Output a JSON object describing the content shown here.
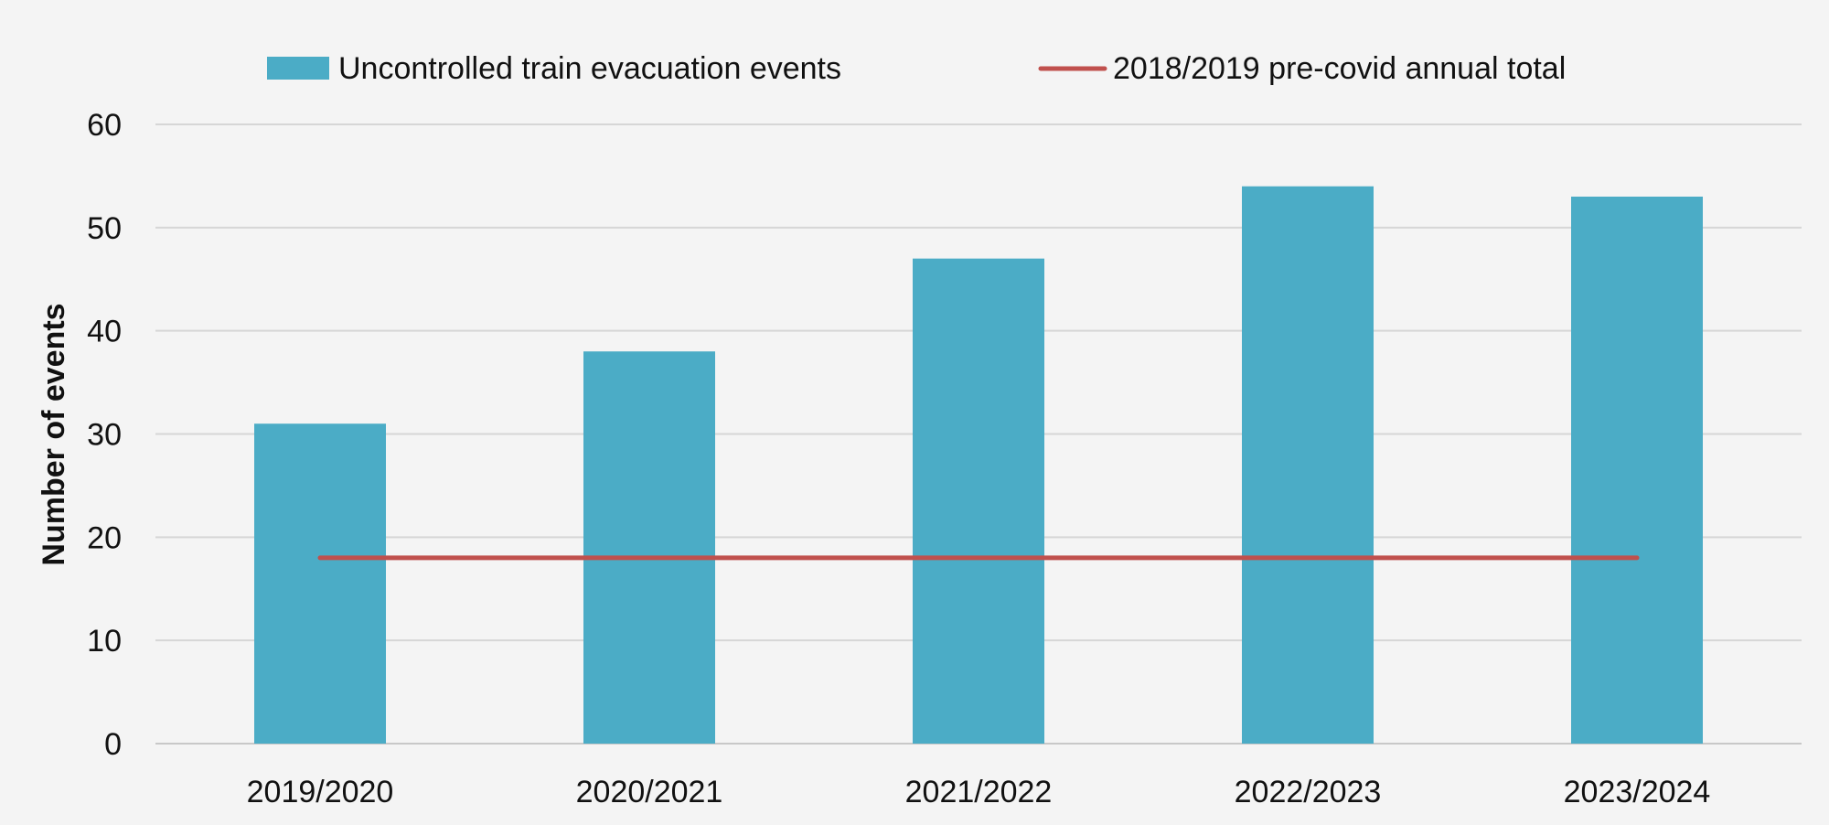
{
  "chart_data": {
    "type": "bar",
    "title": "",
    "xlabel": "",
    "ylabel": "Number of events",
    "categories": [
      "2019/2020",
      "2020/2021",
      "2021/2022",
      "2022/2023",
      "2023/2024"
    ],
    "series": [
      {
        "name": "Uncontrolled train evacuation events",
        "type": "bar",
        "values": [
          31,
          38,
          47,
          54,
          53
        ],
        "color": "#4bacc6"
      },
      {
        "name": "2018/2019 pre-covid annual total",
        "type": "line",
        "values": [
          18,
          18,
          18,
          18,
          18
        ],
        "color": "#c0504d"
      }
    ],
    "ylim": [
      0,
      60
    ],
    "yticks": [
      0,
      10,
      20,
      30,
      40,
      50,
      60
    ],
    "grid": true,
    "legend": "top"
  }
}
